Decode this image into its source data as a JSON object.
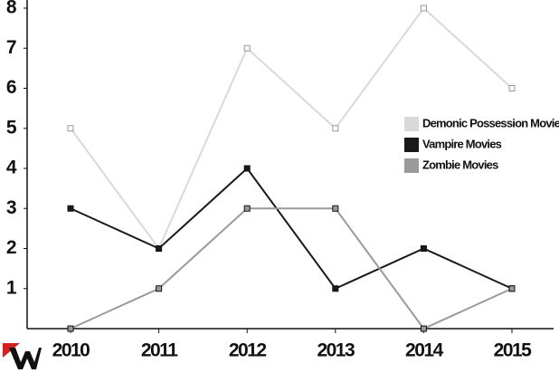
{
  "chart_data": {
    "type": "line",
    "categories": [
      "2010",
      "2011",
      "2012",
      "2013",
      "2014",
      "2015"
    ],
    "series": [
      {
        "name": "Demonic Possession Movies",
        "color": "#d9d9d9",
        "values": [
          5,
          2,
          7,
          5,
          8,
          6
        ]
      },
      {
        "name": "Vampire Movies",
        "color": "#1a1a1a",
        "values": [
          3,
          2,
          4,
          1,
          2,
          1
        ]
      },
      {
        "name": "Zombie Movies",
        "color": "#9a9a9a",
        "values": [
          0,
          1,
          3,
          3,
          0,
          1
        ]
      }
    ],
    "ylim": [
      0,
      8
    ],
    "yticks": [
      1,
      2,
      3,
      4,
      5,
      6,
      7,
      8
    ],
    "grid": false,
    "legend": "right"
  }
}
